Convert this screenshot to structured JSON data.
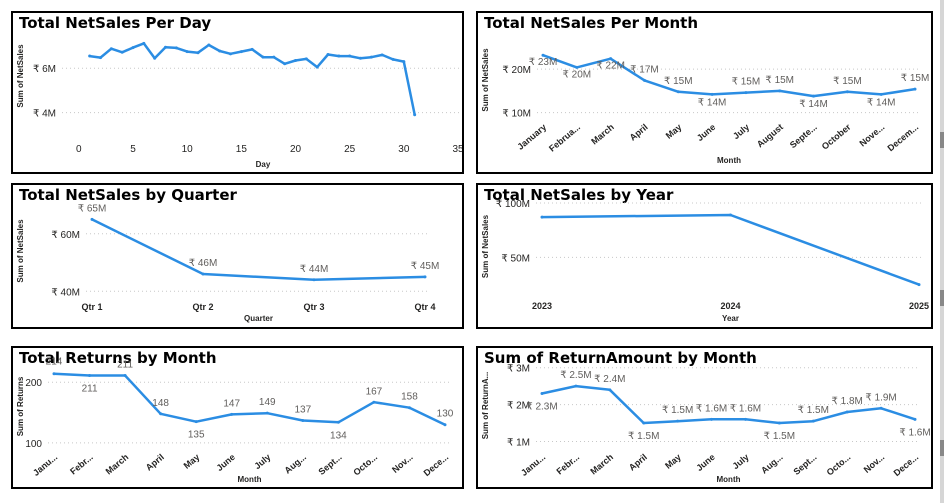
{
  "colors": {
    "line": "#2b8de3",
    "grid": "#c8c8c8",
    "text": "#252423",
    "label": "#605e5c"
  },
  "chart_data": [
    {
      "id": "c1",
      "type": "line",
      "title": "Total NetSales Per Day",
      "xlabel": "Day",
      "ylabel": "Sum of NetSales",
      "x": [
        1,
        2,
        3,
        4,
        5,
        6,
        7,
        8,
        9,
        10,
        11,
        12,
        13,
        14,
        15,
        16,
        17,
        18,
        19,
        20,
        21,
        22,
        23,
        24,
        25,
        26,
        27,
        28,
        29,
        30,
        31
      ],
      "values": [
        6.55,
        6.48,
        6.88,
        6.72,
        6.93,
        7.12,
        6.45,
        6.95,
        6.92,
        6.75,
        6.7,
        7.05,
        6.78,
        6.65,
        6.75,
        6.85,
        6.5,
        6.5,
        6.2,
        6.35,
        6.42,
        6.05,
        6.62,
        6.55,
        6.55,
        6.45,
        6.5,
        6.6,
        6.4,
        6.3,
        3.9
      ],
      "xlim": [
        -1,
        35
      ],
      "ylim": [
        3.8,
        7.5
      ],
      "xticks": [
        0,
        5,
        10,
        15,
        20,
        25,
        30,
        35
      ],
      "xtick_labels": [
        "0",
        "5",
        "10",
        "15",
        "20",
        "25",
        "30",
        "35"
      ],
      "yticks": [
        4,
        6
      ],
      "ytick_labels": [
        "₹ 4M",
        "₹ 6M"
      ],
      "data_labels": []
    },
    {
      "id": "c2",
      "type": "line",
      "title": "Total NetSales Per Month",
      "xlabel": "Month",
      "ylabel": "Sum of NetSales",
      "categories": [
        "January",
        "Februa...",
        "March",
        "April",
        "May",
        "June",
        "July",
        "August",
        "Septe...",
        "October",
        "Nove...",
        "Decem..."
      ],
      "values": [
        23.2,
        20.4,
        22.4,
        17.4,
        14.8,
        14.2,
        14.6,
        15.0,
        13.8,
        14.8,
        14.2,
        15.4
      ],
      "ylim": [
        9,
        26
      ],
      "yticks": [
        10,
        20
      ],
      "ytick_labels": [
        "₹ 10M",
        "₹ 20M"
      ],
      "data_labels": [
        "₹ 23M",
        "₹ 20M",
        "₹ 22M",
        "₹ 17M",
        "₹ 15M",
        "₹ 14M",
        "₹ 15M",
        "₹ 15M",
        "₹ 14M",
        "₹ 15M",
        "₹ 14M",
        "₹ 15M"
      ]
    },
    {
      "id": "c3",
      "type": "line",
      "title": "Total NetSales by Quarter",
      "xlabel": "Quarter",
      "ylabel": "Sum of NetSales",
      "categories": [
        "Qtr 1",
        "Qtr 2",
        "Qtr 3",
        "Qtr 4"
      ],
      "values": [
        65,
        46,
        44,
        45
      ],
      "ylim": [
        38,
        70
      ],
      "yticks": [
        40,
        60
      ],
      "ytick_labels": [
        "₹ 40M",
        "₹ 60M"
      ],
      "data_labels": [
        "₹ 65M",
        "₹ 46M",
        "₹ 44M",
        "₹ 45M"
      ]
    },
    {
      "id": "c4",
      "type": "line",
      "title": "Total NetSales by Year",
      "xlabel": "Year",
      "ylabel": "Sum of NetSales",
      "categories": [
        "2023",
        "2024",
        "2025"
      ],
      "values": [
        87,
        89,
        25
      ],
      "ylim": [
        20,
        100
      ],
      "yticks": [
        50,
        100
      ],
      "ytick_labels": [
        "₹ 50M",
        "₹ 100M"
      ],
      "data_labels": []
    },
    {
      "id": "c5",
      "type": "line",
      "title": "Total Returns by Month",
      "xlabel": "Month",
      "ylabel": "Sum of Returns",
      "categories": [
        "Janu...",
        "Febr...",
        "March",
        "April",
        "May",
        "June",
        "July",
        "Aug...",
        "Sept...",
        "Octo...",
        "Nov...",
        "Dece..."
      ],
      "values": [
        214,
        211,
        211,
        148,
        135,
        147,
        149,
        137,
        134,
        167,
        158,
        130
      ],
      "ylim": [
        90,
        230
      ],
      "yticks": [
        100,
        200
      ],
      "ytick_labels": [
        "100",
        "200"
      ],
      "data_labels": [
        "214",
        "211",
        "211",
        "148",
        "135",
        "147",
        "149",
        "137",
        "134",
        "167",
        "158",
        "130"
      ]
    },
    {
      "id": "c6",
      "type": "line",
      "title": "Sum of ReturnAmount by Month",
      "xlabel": "Month",
      "ylabel": "Sum of ReturnA...",
      "categories": [
        "Janu...",
        "Febr...",
        "March",
        "April",
        "May",
        "June",
        "July",
        "Aug...",
        "Sept...",
        "Octo...",
        "Nov...",
        "Dece..."
      ],
      "values": [
        2.3,
        2.5,
        2.4,
        1.5,
        1.55,
        1.6,
        1.6,
        1.5,
        1.55,
        1.8,
        1.9,
        1.6
      ],
      "ylim": [
        0.85,
        3.1
      ],
      "yticks": [
        1,
        2,
        3
      ],
      "ytick_labels": [
        "₹ 1M",
        "₹ 2M",
        "₹ 3M"
      ],
      "data_labels": [
        "₹ 2.3M",
        "₹ 2.5M",
        "₹ 2.4M",
        "₹ 1.5M",
        "₹ 1.5M",
        "₹ 1.6M",
        "₹ 1.6M",
        "₹ 1.5M",
        "₹ 1.5M",
        "₹ 1.8M",
        "₹ 1.9M",
        "₹ 1.6M"
      ]
    }
  ]
}
